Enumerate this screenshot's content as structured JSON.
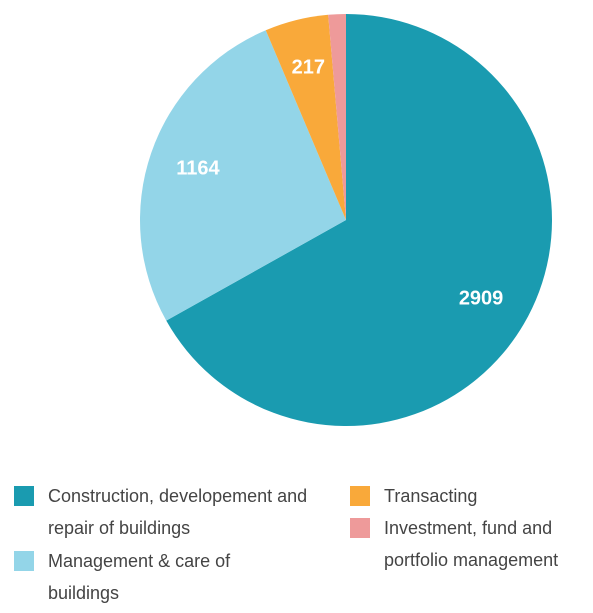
{
  "chart_data": {
    "type": "pie",
    "categories": [
      "Construction, developement and repair of buildings",
      "Management & care of buildings",
      "Transacting",
      "Investment, fund and portfolio management"
    ],
    "values": [
      2909,
      1164,
      217,
      60
    ],
    "colors": [
      "#1a9bb0",
      "#93d5e8",
      "#f9a93a",
      "#ee9a9a"
    ]
  }
}
